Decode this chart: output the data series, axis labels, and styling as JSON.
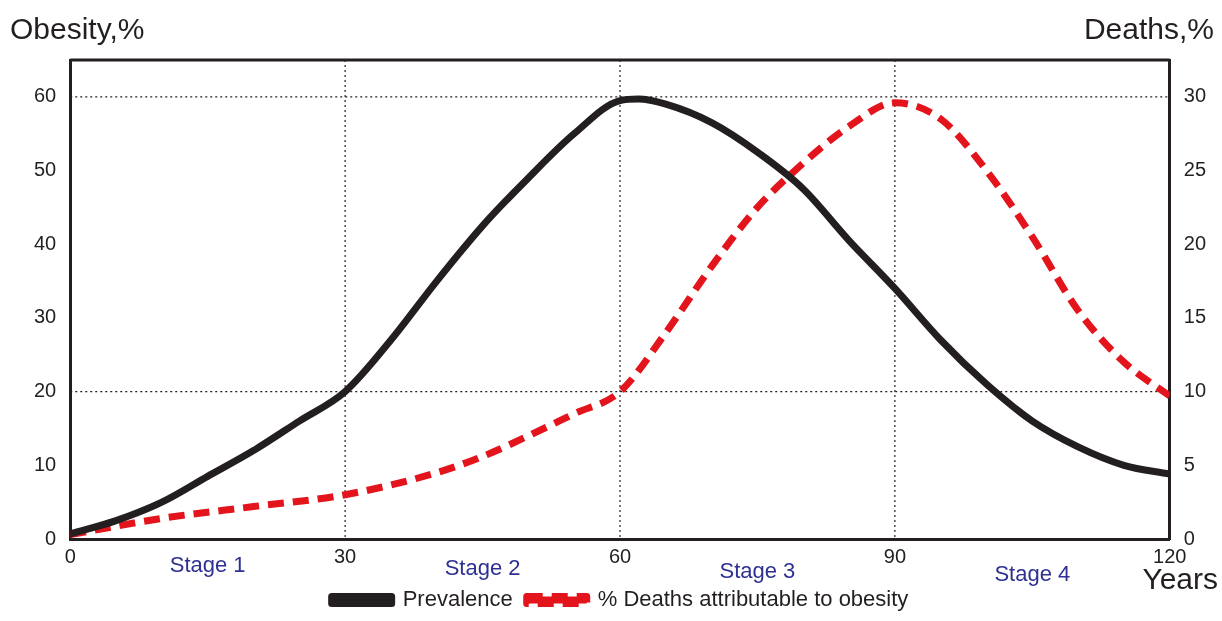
{
  "chart_data": {
    "type": "line",
    "xlabel": "Years",
    "ylabel": "Obesity,%",
    "y2label": "Deaths,%",
    "xlim": [
      0,
      120
    ],
    "xticks": [
      0,
      30,
      60,
      90,
      120
    ],
    "ylim": [
      0,
      65
    ],
    "yticks": [
      0,
      10,
      20,
      30,
      40,
      50,
      60
    ],
    "y2lim": [
      0,
      32.5
    ],
    "y2ticks": [
      0,
      5,
      10,
      15,
      20,
      25,
      30
    ],
    "series": [
      {
        "name": "Prevalence",
        "color": "#231f20",
        "line_style": "solid",
        "x": [
          0,
          5,
          10,
          15,
          20,
          25,
          30,
          35,
          40,
          45,
          50,
          55,
          60,
          62,
          65,
          70,
          75,
          80,
          85,
          90,
          95,
          100,
          105,
          110,
          115,
          120
        ],
        "values": [
          0.7,
          2.5,
          5,
          8.5,
          12,
          16,
          20,
          27,
          35,
          42.5,
          49,
          55,
          59.5,
          59.7,
          59,
          56.5,
          52.5,
          47.5,
          40.5,
          34,
          27,
          21,
          16,
          12.5,
          10,
          8.8
        ]
      },
      {
        "name": "% Deaths attributable to obesity",
        "color": "#e3141b",
        "line_style": "dashed",
        "axis": "y2",
        "x": [
          0,
          10,
          20,
          30,
          40,
          45,
          50,
          55,
          60,
          65,
          70,
          75,
          80,
          85,
          90,
          95,
          100,
          105,
          110,
          115,
          120
        ],
        "values": [
          0.3,
          1.4,
          2.2,
          3,
          4.5,
          5.6,
          7,
          8.5,
          10,
          14,
          18.5,
          22.5,
          25.5,
          28,
          29.6,
          28.5,
          25,
          20.5,
          15.5,
          12,
          9.7
        ]
      }
    ],
    "ref_lines": [
      {
        "axis": "x",
        "value": 30,
        "line_style": "dotted"
      },
      {
        "axis": "x",
        "value": 60,
        "line_style": "dotted"
      },
      {
        "axis": "x",
        "value": 90,
        "line_style": "dotted"
      },
      {
        "axis": "y",
        "value": 20,
        "line_style": "dotted"
      },
      {
        "axis": "y",
        "value": 60,
        "line_style": "dotted"
      }
    ],
    "annotations": [
      "Stage 1",
      "Stage 2",
      "Stage 3",
      "Stage 4"
    ],
    "legend": "bottom",
    "marker": "none",
    "grid": false
  }
}
